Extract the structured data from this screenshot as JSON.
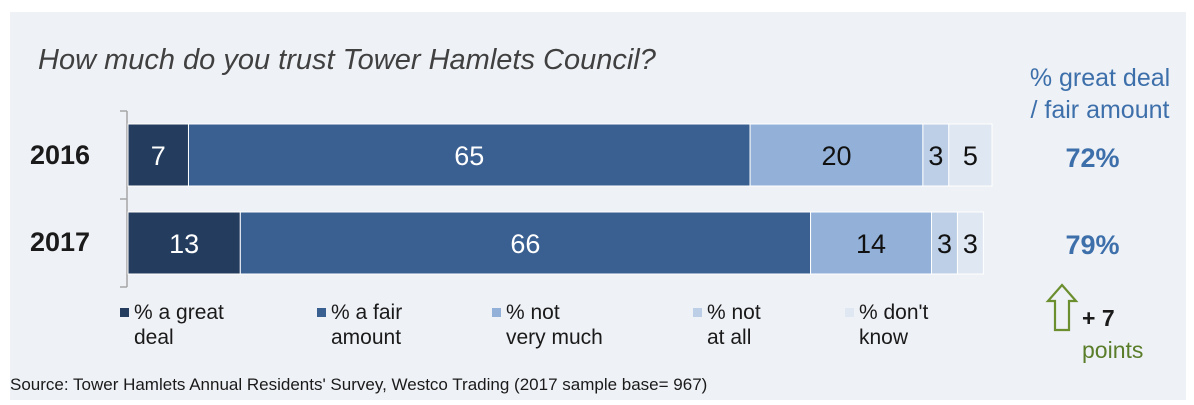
{
  "chart_data": {
    "type": "bar",
    "orientation": "horizontal",
    "stacked": true,
    "title": "How much do you trust Tower Hamlets Council?",
    "categories": [
      "2016",
      "2017"
    ],
    "series": [
      {
        "name": "% a great deal",
        "legend_lines": [
          "% a great",
          "deal"
        ],
        "color": "#243d5e",
        "label_color": "#ffffff",
        "values": [
          7,
          13
        ]
      },
      {
        "name": "% a fair amount",
        "legend_lines": [
          "% a fair",
          "amount"
        ],
        "color": "#3a5f91",
        "label_color": "#ffffff",
        "values": [
          65,
          66
        ]
      },
      {
        "name": "% not very much",
        "legend_lines": [
          "% not",
          "very much"
        ],
        "color": "#93b1d8",
        "label_color": "#111111",
        "values": [
          20,
          14
        ]
      },
      {
        "name": "% not at all",
        "legend_lines": [
          "% not",
          "at all"
        ],
        "color": "#bccfe6",
        "label_color": "#111111",
        "values": [
          3,
          3
        ]
      },
      {
        "name": "% don't know",
        "legend_lines": [
          "% don't",
          "know"
        ],
        "color": "#dfe7f2",
        "label_color": "#111111",
        "values": [
          5,
          3
        ]
      }
    ],
    "xlim": [
      0,
      100
    ],
    "legend": "bottom",
    "grid": false
  },
  "side_summary": {
    "label_lines": [
      "% great deal",
      "/ fair amount"
    ],
    "values": [
      "72%",
      "79%"
    ],
    "change": "+ 7",
    "change_unit": "points",
    "arrow_color": "#6b8e2e"
  },
  "source": "Source: Tower Hamlets Annual Residents' Survey, Westco Trading (2017  sample base= 967)"
}
